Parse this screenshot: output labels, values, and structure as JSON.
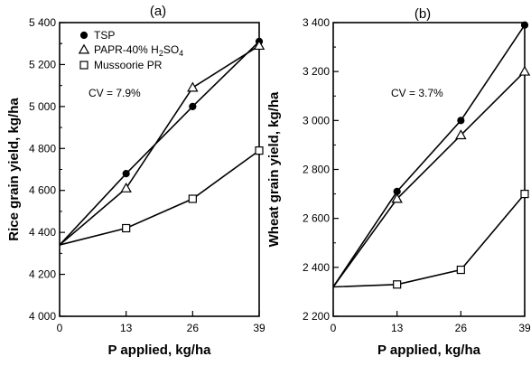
{
  "chart_data": [
    {
      "panel_label": "(a)",
      "type": "line",
      "xlabel": "P applied, kg/ha",
      "ylabel": "Rice grain yield, kg/ha",
      "x": [
        0,
        13,
        26,
        39
      ],
      "xticks": [
        "0",
        "13",
        "26",
        "39"
      ],
      "ylim": [
        4000,
        5400
      ],
      "yticks": [
        4000,
        4200,
        4400,
        4600,
        4800,
        5000,
        5200,
        5400
      ],
      "ytick_labels": [
        "4 000",
        "4 200",
        "4 400",
        "4 600",
        "4 800",
        "5 000",
        "5 200",
        "5 400"
      ],
      "annotation": "CV = 7.9%",
      "legend_position": "top-left",
      "series": [
        {
          "name": "TSP",
          "marker": "filled-circle",
          "values": [
            4340,
            4680,
            5000,
            5310
          ]
        },
        {
          "name": "PAPR-40% H2SO4",
          "name_parts": [
            "PAPR-40% H",
            "2",
            "SO",
            "4"
          ],
          "marker": "open-triangle",
          "values": [
            4340,
            4610,
            5090,
            5290
          ]
        },
        {
          "name": "Mussoorie PR",
          "marker": "open-square",
          "values": [
            4340,
            4420,
            4560,
            4790
          ]
        }
      ]
    },
    {
      "panel_label": "(b)",
      "type": "line",
      "xlabel": "P applied, kg/ha",
      "ylabel": "Wheat grain yield, kg/ha",
      "x": [
        0,
        13,
        26,
        39
      ],
      "xticks": [
        "0",
        "13",
        "26",
        "39"
      ],
      "ylim": [
        2200,
        3400
      ],
      "yticks": [
        2200,
        2400,
        2600,
        2800,
        3000,
        3200,
        3400
      ],
      "ytick_labels": [
        "2 200",
        "2 400",
        "2 600",
        "2 800",
        "3 000",
        "3 200",
        "3 400"
      ],
      "annotation": "CV = 3.7%",
      "series": [
        {
          "name": "TSP",
          "marker": "filled-circle",
          "values": [
            2320,
            2710,
            3000,
            3390
          ]
        },
        {
          "name": "PAPR-40% H2SO4",
          "marker": "open-triangle",
          "values": [
            2320,
            2680,
            2940,
            3200
          ]
        },
        {
          "name": "Mussoorie PR",
          "marker": "open-square",
          "values": [
            2320,
            2330,
            2390,
            2700
          ]
        }
      ]
    }
  ]
}
